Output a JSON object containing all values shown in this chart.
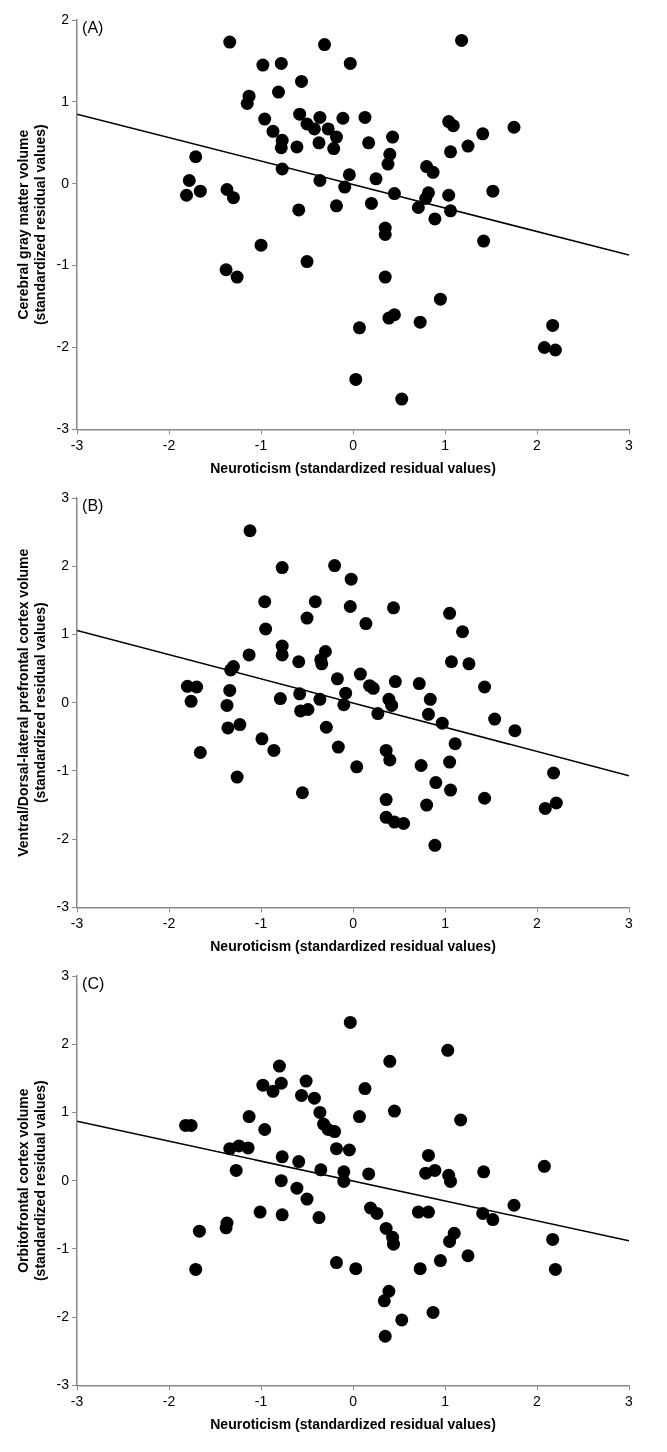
{
  "chart_data": [
    {
      "type": "scatter",
      "title": "(A)",
      "xlabel": "Neuroticism (standardized residual values)",
      "ylabel": "Cerebral gray matter volume\n(standardized residual values)",
      "xlim": [
        -3,
        3
      ],
      "xticks": [
        -3,
        -2,
        -1,
        0,
        1,
        2,
        3
      ],
      "ylim": [
        -3,
        2
      ],
      "yticks": [
        -3,
        -2,
        -1,
        0,
        1,
        2
      ],
      "series": [
        {
          "marker": "circle",
          "color": "#000000",
          "x": [
            -1.34,
            -0.98,
            -0.78,
            -0.56,
            -1.13,
            -1.15,
            -0.81,
            -0.96,
            -0.87,
            -0.77,
            -0.78,
            -0.61,
            -0.58,
            -0.5,
            -0.42,
            -0.36,
            -0.37,
            -1.71,
            -1.78,
            -1.81,
            -1.66,
            -1.37,
            -1.3,
            -0.77,
            -0.36,
            -0.59,
            -1.0,
            -0.5,
            -1.38,
            -1.26,
            -0.31,
            -0.03,
            1.18,
            -0.11,
            0.13,
            -0.27,
            -0.18,
            -0.21,
            0.17,
            0.43,
            0.4,
            0.38,
            1.04,
            1.09,
            1.41,
            1.75,
            1.25,
            1.06,
            0.8,
            0.87,
            -0.04,
            0.25,
            -0.09,
            0.45,
            0.82,
            0.79,
            0.71,
            1.04,
            1.06,
            0.89,
            1.52,
            -0.18,
            0.2,
            0.35,
            0.35,
            1.42,
            0.35,
            0.95,
            0.07,
            0.39,
            0.45,
            0.73,
            2.17,
            2.08,
            2.2,
            0.03,
            0.53
          ],
          "values": [
            1.73,
            1.45,
            1.47,
            1.25,
            1.07,
            0.98,
            1.12,
            0.79,
            0.64,
            0.53,
            0.44,
            0.45,
            0.85,
            0.73,
            0.67,
            0.81,
            0.5,
            0.33,
            0.04,
            -0.14,
            -0.09,
            -0.07,
            -0.17,
            0.18,
            0.04,
            -0.32,
            -0.75,
            -0.95,
            -1.05,
            -1.14,
            1.7,
            1.47,
            1.75,
            0.8,
            0.81,
            0.67,
            0.57,
            0.43,
            0.5,
            0.57,
            0.36,
            0.24,
            0.76,
            0.71,
            0.61,
            0.69,
            0.46,
            0.39,
            0.21,
            0.14,
            0.11,
            0.06,
            -0.04,
            -0.12,
            -0.11,
            -0.18,
            -0.29,
            -0.14,
            -0.33,
            -0.43,
            -0.09,
            -0.27,
            -0.24,
            -0.54,
            -0.62,
            -0.7,
            -1.14,
            -1.41,
            -1.76,
            -1.64,
            -1.6,
            -1.69,
            -1.73,
            -2.0,
            -2.03,
            -2.39,
            -2.63
          ]
        },
        {
          "type": "line",
          "marker": "none",
          "color": "#000000",
          "x": [
            -3,
            3
          ],
          "values": [
            0.85,
            -0.87
          ]
        }
      ]
    },
    {
      "type": "scatter",
      "title": "(B)",
      "xlabel": "Neuroticism (standardized residual values)",
      "ylabel": "Ventral/Dorsal-lateral prefrontal cortex volume\n(standardized residual values)",
      "xlim": [
        -3,
        3
      ],
      "xticks": [
        -3,
        -2,
        -1,
        0,
        1,
        2,
        3
      ],
      "ylim": [
        -3,
        3
      ],
      "yticks": [
        -3,
        -2,
        -1,
        0,
        1,
        2,
        3
      ],
      "series": [
        {
          "marker": "circle",
          "color": "#000000",
          "x": [
            -1.12,
            -0.77,
            -0.96,
            -0.41,
            -0.5,
            -0.95,
            -0.77,
            -0.77,
            -1.13,
            -0.59,
            -0.35,
            -0.34,
            -1.3,
            -1.33,
            -1.8,
            -1.7,
            -1.76,
            -1.34,
            -1.37,
            -0.79,
            -0.58,
            -0.57,
            -0.49,
            -0.36,
            -0.29,
            -1.36,
            -1.23,
            -1.66,
            -0.99,
            -0.86,
            -1.26,
            -0.55,
            -0.2,
            -0.02,
            -0.03,
            0.44,
            0.14,
            1.05,
            1.19,
            1.07,
            1.26,
            -0.3,
            -0.17,
            0.08,
            0.18,
            0.22,
            0.46,
            0.72,
            -0.08,
            -0.1,
            0.39,
            0.42,
            0.84,
            0.27,
            0.82,
            0.97,
            1.43,
            1.54,
            1.76,
            -0.16,
            0.04,
            0.36,
            0.4,
            0.74,
            1.11,
            1.05,
            0.9,
            1.06,
            1.43,
            0.36,
            0.36,
            0.45,
            0.55,
            0.8,
            0.89,
            2.18,
            2.09,
            2.21
          ],
          "values": [
            2.52,
            1.98,
            1.48,
            1.48,
            1.24,
            1.08,
            0.83,
            0.7,
            0.7,
            0.6,
            0.63,
            0.57,
            0.53,
            0.48,
            0.24,
            0.23,
            0.02,
            0.18,
            -0.04,
            0.06,
            0.13,
            -0.12,
            -0.1,
            0.05,
            -0.36,
            -0.37,
            -0.32,
            -0.73,
            -0.53,
            -0.7,
            -1.09,
            -1.32,
            2.01,
            1.81,
            1.41,
            1.39,
            1.16,
            1.31,
            1.04,
            0.6,
            0.57,
            0.75,
            0.35,
            0.42,
            0.25,
            0.21,
            0.31,
            0.28,
            0.14,
            -0.03,
            0.05,
            -0.04,
            0.05,
            -0.16,
            -0.17,
            -0.3,
            0.23,
            -0.24,
            -0.41,
            -0.65,
            -0.94,
            -0.7,
            -0.84,
            -0.92,
            -0.6,
            -0.87,
            -1.17,
            -1.28,
            -1.4,
            -1.42,
            -1.68,
            -1.75,
            -1.77,
            -1.5,
            -2.09,
            -1.03,
            -1.55,
            -1.47
          ]
        },
        {
          "type": "line",
          "marker": "none",
          "color": "#000000",
          "x": [
            -3,
            3
          ],
          "values": [
            1.06,
            -1.07
          ]
        }
      ]
    },
    {
      "type": "scatter",
      "title": "(C)",
      "xlabel": "Neuroticism (standardized residual values)",
      "ylabel": "Orbitofrontal cortex volume\n(standardized residual values)",
      "xlim": [
        -3,
        3
      ],
      "xticks": [
        -3,
        -2,
        -1,
        0,
        1,
        2,
        3
      ],
      "ylim": [
        -3,
        3
      ],
      "yticks": [
        -3,
        -2,
        -1,
        0,
        1,
        2,
        3
      ],
      "series": [
        {
          "marker": "circle",
          "color": "#000000",
          "x": [
            -0.8,
            -0.98,
            -0.78,
            -0.87,
            -0.51,
            -0.56,
            -0.42,
            -0.36,
            -0.32,
            -1.13,
            -0.96,
            -1.82,
            -1.76,
            -1.34,
            -1.24,
            -1.14,
            -0.77,
            -0.59,
            -1.27,
            -0.78,
            -0.61,
            -0.35,
            -0.5,
            -1.01,
            -0.77,
            -0.37,
            -1.37,
            -1.38,
            -1.67,
            -1.71,
            -0.03,
            1.03,
            0.4,
            0.13,
            0.45,
            0.07,
            1.17,
            -0.27,
            -0.2,
            -0.18,
            -0.04,
            0.82,
            0.79,
            0.89,
            1.04,
            1.06,
            1.42,
            2.08,
            -0.1,
            -0.1,
            0.17,
            0.19,
            0.26,
            0.71,
            0.82,
            1.41,
            1.52,
            1.75,
            0.36,
            0.43,
            0.44,
            1.1,
            1.05,
            -0.18,
            0.03,
            0.73,
            0.95,
            1.25,
            2.17,
            2.2,
            0.39,
            0.34,
            0.53,
            0.87,
            0.35
          ],
          "values": [
            1.68,
            1.4,
            1.43,
            1.31,
            1.46,
            1.25,
            1.21,
            1.0,
            0.83,
            0.94,
            0.75,
            0.81,
            0.81,
            0.47,
            0.51,
            0.48,
            0.35,
            0.28,
            0.15,
            0.0,
            -0.11,
            0.16,
            -0.27,
            -0.46,
            -0.5,
            -0.54,
            -0.62,
            -0.69,
            -0.74,
            -1.3,
            2.32,
            1.91,
            1.75,
            1.35,
            1.02,
            0.94,
            0.89,
            0.75,
            0.72,
            0.47,
            0.45,
            0.37,
            0.11,
            0.15,
            0.08,
            -0.01,
            0.13,
            0.21,
            0.13,
            -0.01,
            0.1,
            -0.4,
            -0.48,
            -0.46,
            -0.46,
            -0.48,
            -0.57,
            -0.36,
            -0.7,
            -0.83,
            -0.93,
            -0.77,
            -0.89,
            -1.2,
            -1.29,
            -1.29,
            -1.17,
            -1.1,
            -0.86,
            -1.3,
            -1.62,
            -1.76,
            -2.04,
            -1.93,
            -2.28
          ]
        },
        {
          "type": "line",
          "marker": "none",
          "color": "#000000",
          "x": [
            -3,
            3
          ],
          "values": [
            0.87,
            -0.88
          ]
        }
      ]
    }
  ]
}
